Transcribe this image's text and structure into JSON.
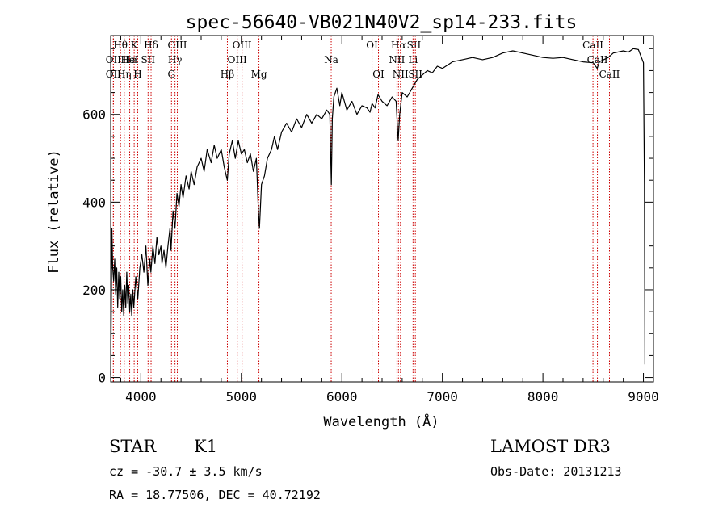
{
  "chart_data": {
    "type": "line",
    "title": "spec-56640-VB021N40V2_sp14-233.fits",
    "xlabel": "Wavelength (Å)",
    "ylabel": "Flux (relative)",
    "xlim": [
      3700,
      9100
    ],
    "ylim": [
      -10,
      780
    ],
    "xticks": [
      4000,
      5000,
      6000,
      7000,
      8000,
      9000
    ],
    "yticks": [
      0,
      200,
      400,
      600
    ],
    "x_minor_step": 200,
    "y_minor_step": 50,
    "line_color": "#000000",
    "marker_color": "#cc0000",
    "series": [
      {
        "name": "flux",
        "points": [
          [
            3700,
            5
          ],
          [
            3705,
            120
          ],
          [
            3712,
            340
          ],
          [
            3720,
            250
          ],
          [
            3730,
            220
          ],
          [
            3740,
            270
          ],
          [
            3750,
            190
          ],
          [
            3760,
            250
          ],
          [
            3770,
            160
          ],
          [
            3780,
            240
          ],
          [
            3790,
            180
          ],
          [
            3800,
            230
          ],
          [
            3810,
            150
          ],
          [
            3820,
            200
          ],
          [
            3830,
            140
          ],
          [
            3840,
            210
          ],
          [
            3850,
            160
          ],
          [
            3860,
            240
          ],
          [
            3870,
            170
          ],
          [
            3880,
            210
          ],
          [
            3890,
            150
          ],
          [
            3900,
            190
          ],
          [
            3910,
            140
          ],
          [
            3920,
            200
          ],
          [
            3930,
            160
          ],
          [
            3950,
            230
          ],
          [
            3970,
            180
          ],
          [
            3990,
            250
          ],
          [
            4010,
            280
          ],
          [
            4030,
            240
          ],
          [
            4050,
            300
          ],
          [
            4070,
            210
          ],
          [
            4090,
            270
          ],
          [
            4100,
            240
          ],
          [
            4120,
            300
          ],
          [
            4140,
            260
          ],
          [
            4160,
            320
          ],
          [
            4180,
            280
          ],
          [
            4200,
            300
          ],
          [
            4210,
            260
          ],
          [
            4230,
            290
          ],
          [
            4250,
            250
          ],
          [
            4270,
            300
          ],
          [
            4290,
            340
          ],
          [
            4300,
            290
          ],
          [
            4320,
            380
          ],
          [
            4340,
            340
          ],
          [
            4360,
            420
          ],
          [
            4380,
            390
          ],
          [
            4400,
            440
          ],
          [
            4420,
            410
          ],
          [
            4450,
            460
          ],
          [
            4480,
            430
          ],
          [
            4500,
            470
          ],
          [
            4530,
            440
          ],
          [
            4560,
            480
          ],
          [
            4600,
            500
          ],
          [
            4630,
            470
          ],
          [
            4660,
            520
          ],
          [
            4700,
            490
          ],
          [
            4730,
            530
          ],
          [
            4760,
            500
          ],
          [
            4800,
            520
          ],
          [
            4830,
            480
          ],
          [
            4860,
            450
          ],
          [
            4880,
            510
          ],
          [
            4910,
            540
          ],
          [
            4940,
            500
          ],
          [
            4970,
            540
          ],
          [
            5000,
            510
          ],
          [
            5030,
            520
          ],
          [
            5060,
            490
          ],
          [
            5090,
            510
          ],
          [
            5120,
            470
          ],
          [
            5150,
            500
          ],
          [
            5170,
            380
          ],
          [
            5180,
            340
          ],
          [
            5200,
            440
          ],
          [
            5230,
            460
          ],
          [
            5260,
            500
          ],
          [
            5300,
            520
          ],
          [
            5330,
            550
          ],
          [
            5360,
            520
          ],
          [
            5400,
            560
          ],
          [
            5450,
            580
          ],
          [
            5500,
            560
          ],
          [
            5550,
            590
          ],
          [
            5600,
            570
          ],
          [
            5650,
            600
          ],
          [
            5700,
            580
          ],
          [
            5750,
            600
          ],
          [
            5800,
            590
          ],
          [
            5850,
            610
          ],
          [
            5880,
            600
          ],
          [
            5895,
            440
          ],
          [
            5905,
            590
          ],
          [
            5920,
            640
          ],
          [
            5950,
            660
          ],
          [
            5980,
            620
          ],
          [
            6000,
            650
          ],
          [
            6050,
            610
          ],
          [
            6100,
            630
          ],
          [
            6150,
            600
          ],
          [
            6200,
            620
          ],
          [
            6250,
            615
          ],
          [
            6280,
            605
          ],
          [
            6300,
            625
          ],
          [
            6330,
            615
          ],
          [
            6360,
            645
          ],
          [
            6400,
            630
          ],
          [
            6450,
            620
          ],
          [
            6500,
            640
          ],
          [
            6540,
            630
          ],
          [
            6560,
            540
          ],
          [
            6575,
            600
          ],
          [
            6600,
            650
          ],
          [
            6650,
            640
          ],
          [
            6700,
            660
          ],
          [
            6750,
            680
          ],
          [
            6800,
            690
          ],
          [
            6850,
            700
          ],
          [
            6900,
            695
          ],
          [
            6950,
            710
          ],
          [
            7000,
            705
          ],
          [
            7100,
            720
          ],
          [
            7200,
            725
          ],
          [
            7300,
            730
          ],
          [
            7400,
            725
          ],
          [
            7500,
            730
          ],
          [
            7600,
            740
          ],
          [
            7700,
            745
          ],
          [
            7800,
            740
          ],
          [
            7900,
            735
          ],
          [
            8000,
            730
          ],
          [
            8100,
            728
          ],
          [
            8200,
            730
          ],
          [
            8300,
            725
          ],
          [
            8400,
            720
          ],
          [
            8500,
            718
          ],
          [
            8540,
            705
          ],
          [
            8560,
            720
          ],
          [
            8650,
            730
          ],
          [
            8700,
            740
          ],
          [
            8800,
            745
          ],
          [
            8850,
            742
          ],
          [
            8900,
            750
          ],
          [
            8950,
            748
          ],
          [
            9000,
            718
          ],
          [
            9010,
            440
          ],
          [
            9015,
            30
          ]
        ]
      }
    ],
    "line_markers": [
      {
        "label": "Hθ",
        "x": 3798,
        "row": 0
      },
      {
        "label": "OII",
        "x": 3727,
        "row": 1
      },
      {
        "label": "OII",
        "x": 3727,
        "row": 2
      },
      {
        "label": "He",
        "x": 3889,
        "row": 1
      },
      {
        "label": "Hη",
        "x": 3835,
        "row": 2
      },
      {
        "label": "K",
        "x": 3934,
        "row": 0
      },
      {
        "label": "H",
        "x": 3969,
        "row": 2
      },
      {
        "label": "HeI",
        "x": 3889,
        "row": 1
      },
      {
        "label": "SII",
        "x": 4072,
        "row": 1
      },
      {
        "label": "Hδ",
        "x": 4102,
        "row": 0
      },
      {
        "label": "OIII",
        "x": 4363,
        "row": 0
      },
      {
        "label": "Hγ",
        "x": 4340,
        "row": 1
      },
      {
        "label": "G",
        "x": 4305,
        "row": 2
      },
      {
        "label": "Hβ",
        "x": 4861,
        "row": 2
      },
      {
        "label": "OIII",
        "x": 5007,
        "row": 0
      },
      {
        "label": "OIII",
        "x": 4959,
        "row": 1
      },
      {
        "label": "Mg",
        "x": 5175,
        "row": 2
      },
      {
        "label": "Na",
        "x": 5894,
        "row": 1
      },
      {
        "label": "OI",
        "x": 6300,
        "row": 0
      },
      {
        "label": "OI",
        "x": 6364,
        "row": 2
      },
      {
        "label": "Hα",
        "x": 6563,
        "row": 0
      },
      {
        "label": "NII",
        "x": 6548,
        "row": 1
      },
      {
        "label": "NII",
        "x": 6583,
        "row": 2
      },
      {
        "label": "SII",
        "x": 6717,
        "row": 0
      },
      {
        "label": "Li",
        "x": 6708,
        "row": 1
      },
      {
        "label": "SII",
        "x": 6731,
        "row": 2
      },
      {
        "label": "CaII",
        "x": 8498,
        "row": 0
      },
      {
        "label": "CaII",
        "x": 8542,
        "row": 1
      },
      {
        "label": "CaII",
        "x": 8662,
        "row": 2
      }
    ]
  },
  "info": {
    "object_class": "STAR",
    "subclass": "K1",
    "survey": "LAMOST DR3",
    "redshift": "cz = -30.7 ± 3.5 km/s",
    "obs_date": "Obs-Date: 20131213",
    "coords": "RA =  18.77506, DEC =  40.72192"
  }
}
